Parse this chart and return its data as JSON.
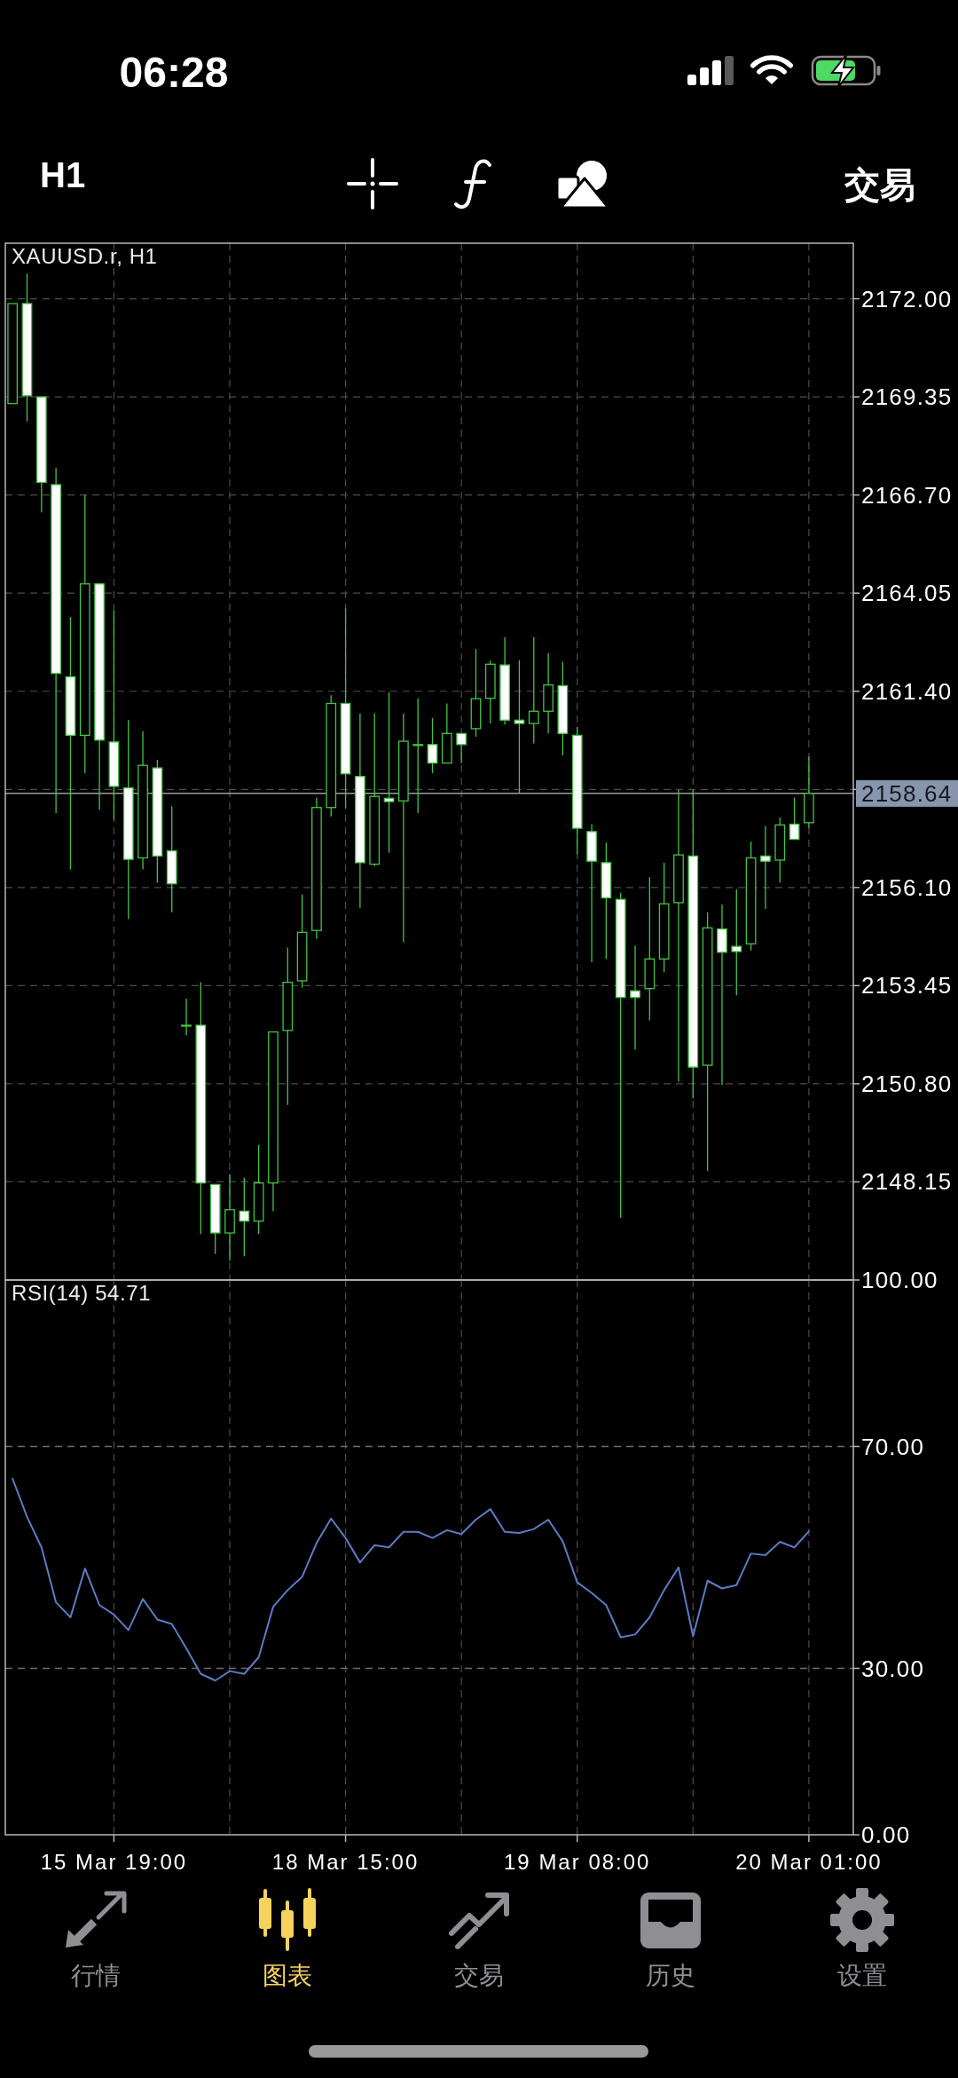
{
  "chart_data": [
    {
      "type": "other",
      "annotations": [
        "06:28",
        "H1",
        "交易"
      ]
    },
    {
      "type": "candlestick",
      "title": "XAUUSD.r, H1",
      "categories": [
        null,
        null,
        null,
        null,
        null,
        null,
        null,
        null,
        null,
        null,
        null,
        null,
        null,
        null,
        null,
        null,
        null,
        null,
        null,
        null,
        null,
        null,
        null,
        null,
        null,
        null,
        null,
        null,
        null,
        null,
        null,
        null,
        null,
        null,
        null,
        null,
        null,
        null,
        null,
        null,
        null,
        null,
        null,
        null,
        null,
        null,
        null,
        null,
        null,
        null,
        null,
        null,
        null,
        null,
        null,
        null
      ],
      "ohlc": [
        [
          2169.17,
          2171.87,
          2169.17,
          2171.87
        ],
        [
          2171.87,
          2172.68,
          2168.69,
          2169.38
        ],
        [
          2169.35,
          2169.35,
          2166.23,
          2167.04
        ],
        [
          2166.98,
          2167.43,
          2158.11,
          2161.88
        ],
        [
          2161.79,
          2163.4,
          2156.59,
          2160.21
        ],
        [
          2160.21,
          2166.71,
          2159.19,
          2164.3
        ],
        [
          2164.3,
          2164.3,
          2158.2,
          2160.08
        ],
        [
          2160.03,
          2163.58,
          2157.93,
          2158.83
        ],
        [
          2158.79,
          2160.62,
          2155.25,
          2156.86
        ],
        [
          2156.9,
          2160.32,
          2156.59,
          2159.4
        ],
        [
          2159.33,
          2159.55,
          2156.23,
          2156.95
        ],
        [
          2157.09,
          2158.29,
          2155.43,
          2156.2
        ],
        [
          2152.38,
          2153.1,
          2152.11,
          2152.38
        ],
        [
          2152.38,
          2153.54,
          2146.74,
          2148.12
        ],
        [
          2148.08,
          2148.08,
          2146.2,
          2146.77
        ],
        [
          2146.77,
          2148.35,
          2146.02,
          2147.4
        ],
        [
          2147.36,
          2148.26,
          2146.14,
          2147.09
        ],
        [
          2147.09,
          2149.15,
          2146.74,
          2148.12
        ],
        [
          2148.12,
          2152.2,
          2147.36,
          2152.2
        ],
        [
          2152.24,
          2154.48,
          2150.23,
          2153.54
        ],
        [
          2153.58,
          2155.91,
          2153.4,
          2154.89
        ],
        [
          2154.94,
          2158.53,
          2154.71,
          2158.26
        ],
        [
          2158.26,
          2161.29,
          2158.02,
          2161.07
        ],
        [
          2161.07,
          2163.63,
          2158.26,
          2159.17
        ],
        [
          2159.1,
          2160.8,
          2155.55,
          2156.77
        ],
        [
          2156.73,
          2160.8,
          2156.68,
          2158.56
        ],
        [
          2158.51,
          2161.37,
          2157.04,
          2158.42
        ],
        [
          2158.44,
          2160.8,
          2154.62,
          2160.05
        ],
        [
          2159.96,
          2161.21,
          2158.11,
          2159.96
        ],
        [
          2159.96,
          2160.68,
          2159.19,
          2159.46
        ],
        [
          2159.46,
          2161.07,
          2159.46,
          2160.26
        ],
        [
          2160.26,
          2160.26,
          2159.46,
          2159.96
        ],
        [
          2160.39,
          2162.54,
          2160.17,
          2161.2
        ],
        [
          2161.21,
          2162.24,
          2160.53,
          2162.13
        ],
        [
          2162.11,
          2162.86,
          2160.5,
          2160.62
        ],
        [
          2160.62,
          2162.24,
          2158.65,
          2160.53
        ],
        [
          2160.53,
          2162.86,
          2159.99,
          2160.86
        ],
        [
          2160.86,
          2162.43,
          2160.26,
          2161.57
        ],
        [
          2161.55,
          2162.2,
          2159.67,
          2160.26
        ],
        [
          2160.21,
          2160.44,
          2157.0,
          2157.7
        ],
        [
          2157.61,
          2157.81,
          2154.08,
          2156.81
        ],
        [
          2156.77,
          2157.31,
          2154.17,
          2155.82
        ],
        [
          2155.78,
          2155.96,
          2147.18,
          2153.13
        ],
        [
          2153.31,
          2154.53,
          2151.72,
          2153.13
        ],
        [
          2153.37,
          2156.38,
          2152.51,
          2154.17
        ],
        [
          2154.17,
          2156.77,
          2153.81,
          2155.66
        ],
        [
          2155.69,
          2158.74,
          2150.86,
          2156.98
        ],
        [
          2156.95,
          2158.74,
          2150.41,
          2151.25
        ],
        [
          2151.3,
          2155.43,
          2148.44,
          2155.01
        ],
        [
          2154.98,
          2155.64,
          2150.77,
          2154.35
        ],
        [
          2154.51,
          2156.05,
          2153.19,
          2154.37
        ],
        [
          2154.58,
          2157.34,
          2154.4,
          2156.9
        ],
        [
          2156.95,
          2157.76,
          2155.52,
          2156.81
        ],
        [
          2156.84,
          2157.99,
          2156.23,
          2157.79
        ],
        [
          2157.81,
          2158.53,
          2157.4,
          2157.4
        ],
        [
          2157.85,
          2159.64,
          2157.7,
          2158.64
        ]
      ],
      "color": "#44c444",
      "ylim": [
        2145.5,
        2173.5
      ],
      "yticks": [
        {
          "value": 2172,
          "label": "2172.00"
        },
        {
          "value": 2169.35,
          "label": "2169.35"
        },
        {
          "value": 2166.7,
          "label": "2166.70"
        },
        {
          "value": 2164.05,
          "label": "2164.05"
        },
        {
          "value": 2161.4,
          "label": "2161.40"
        },
        {
          "value": 2158.75,
          "label": null
        },
        {
          "value": 2156.1,
          "label": "2156.10"
        },
        {
          "value": 2153.45,
          "label": "2153.45"
        },
        {
          "value": 2150.8,
          "label": "2150.80"
        },
        {
          "value": 2148.15,
          "label": "2148.15"
        }
      ],
      "grid": true,
      "tick_labels": "y",
      "ref_lines": [
        {
          "axis": "y",
          "value": 2158.64,
          "label": "2158.64",
          "color": "#9c9c9c",
          "line_style": "solid"
        }
      ]
    },
    {
      "type": "line",
      "title": "RSI(14) 54.71",
      "categories": [
        null,
        null,
        null,
        null,
        null,
        null,
        null,
        "15 Mar 19:00",
        null,
        null,
        null,
        null,
        null,
        null,
        null,
        null,
        null,
        null,
        null,
        null,
        null,
        null,
        null,
        "18 Mar 15:00",
        null,
        null,
        null,
        null,
        null,
        null,
        null,
        null,
        null,
        null,
        null,
        null,
        null,
        null,
        null,
        "19 Mar 08:00",
        null,
        null,
        null,
        null,
        null,
        null,
        null,
        null,
        null,
        null,
        null,
        null,
        null,
        null,
        null,
        "20 Mar 01:00"
      ],
      "values": [
        64.2,
        57.3,
        51.8,
        41.9,
        39.2,
        48.0,
        41.4,
        39.7,
        36.9,
        42.5,
        38.8,
        38.0,
        33.6,
        29.0,
        27.8,
        29.5,
        29.0,
        32.0,
        41.1,
        44.1,
        46.5,
        52.6,
        57.0,
        53.5,
        49.1,
        52.2,
        51.8,
        54.6,
        54.6,
        53.5,
        54.9,
        54.2,
        56.8,
        58.7,
        54.6,
        54.4,
        55.1,
        56.8,
        52.9,
        45.5,
        43.6,
        41.4,
        35.6,
        36.1,
        39.2,
        44.1,
        48.2,
        35.8,
        45.8,
        44.4,
        45.0,
        50.7,
        50.4,
        52.8,
        51.8,
        54.7
      ],
      "color": "#5a7cc4",
      "ylim": [
        0,
        100
      ],
      "yticks": [
        {
          "value": 100,
          "label": "100.00"
        },
        {
          "value": 70,
          "label": "70.00"
        },
        {
          "value": 30,
          "label": "30.00"
        },
        {
          "value": 0,
          "label": "0.00"
        }
      ],
      "grid": "x",
      "ref_lines": [
        {
          "axis": "y",
          "value": 70,
          "color": "#6e6e6e",
          "line_style": "dashed"
        },
        {
          "axis": "y",
          "value": 30,
          "color": "#6e6e6e",
          "line_style": "dashed"
        }
      ]
    },
    {
      "type": "other",
      "annotations": [
        "行情",
        "图表",
        "交易",
        "历史",
        "设置"
      ],
      "colors": [
        "#8e8e93",
        "#f5d35e",
        "#8e8e93",
        "#8e8e93",
        "#8e8e93"
      ]
    }
  ]
}
